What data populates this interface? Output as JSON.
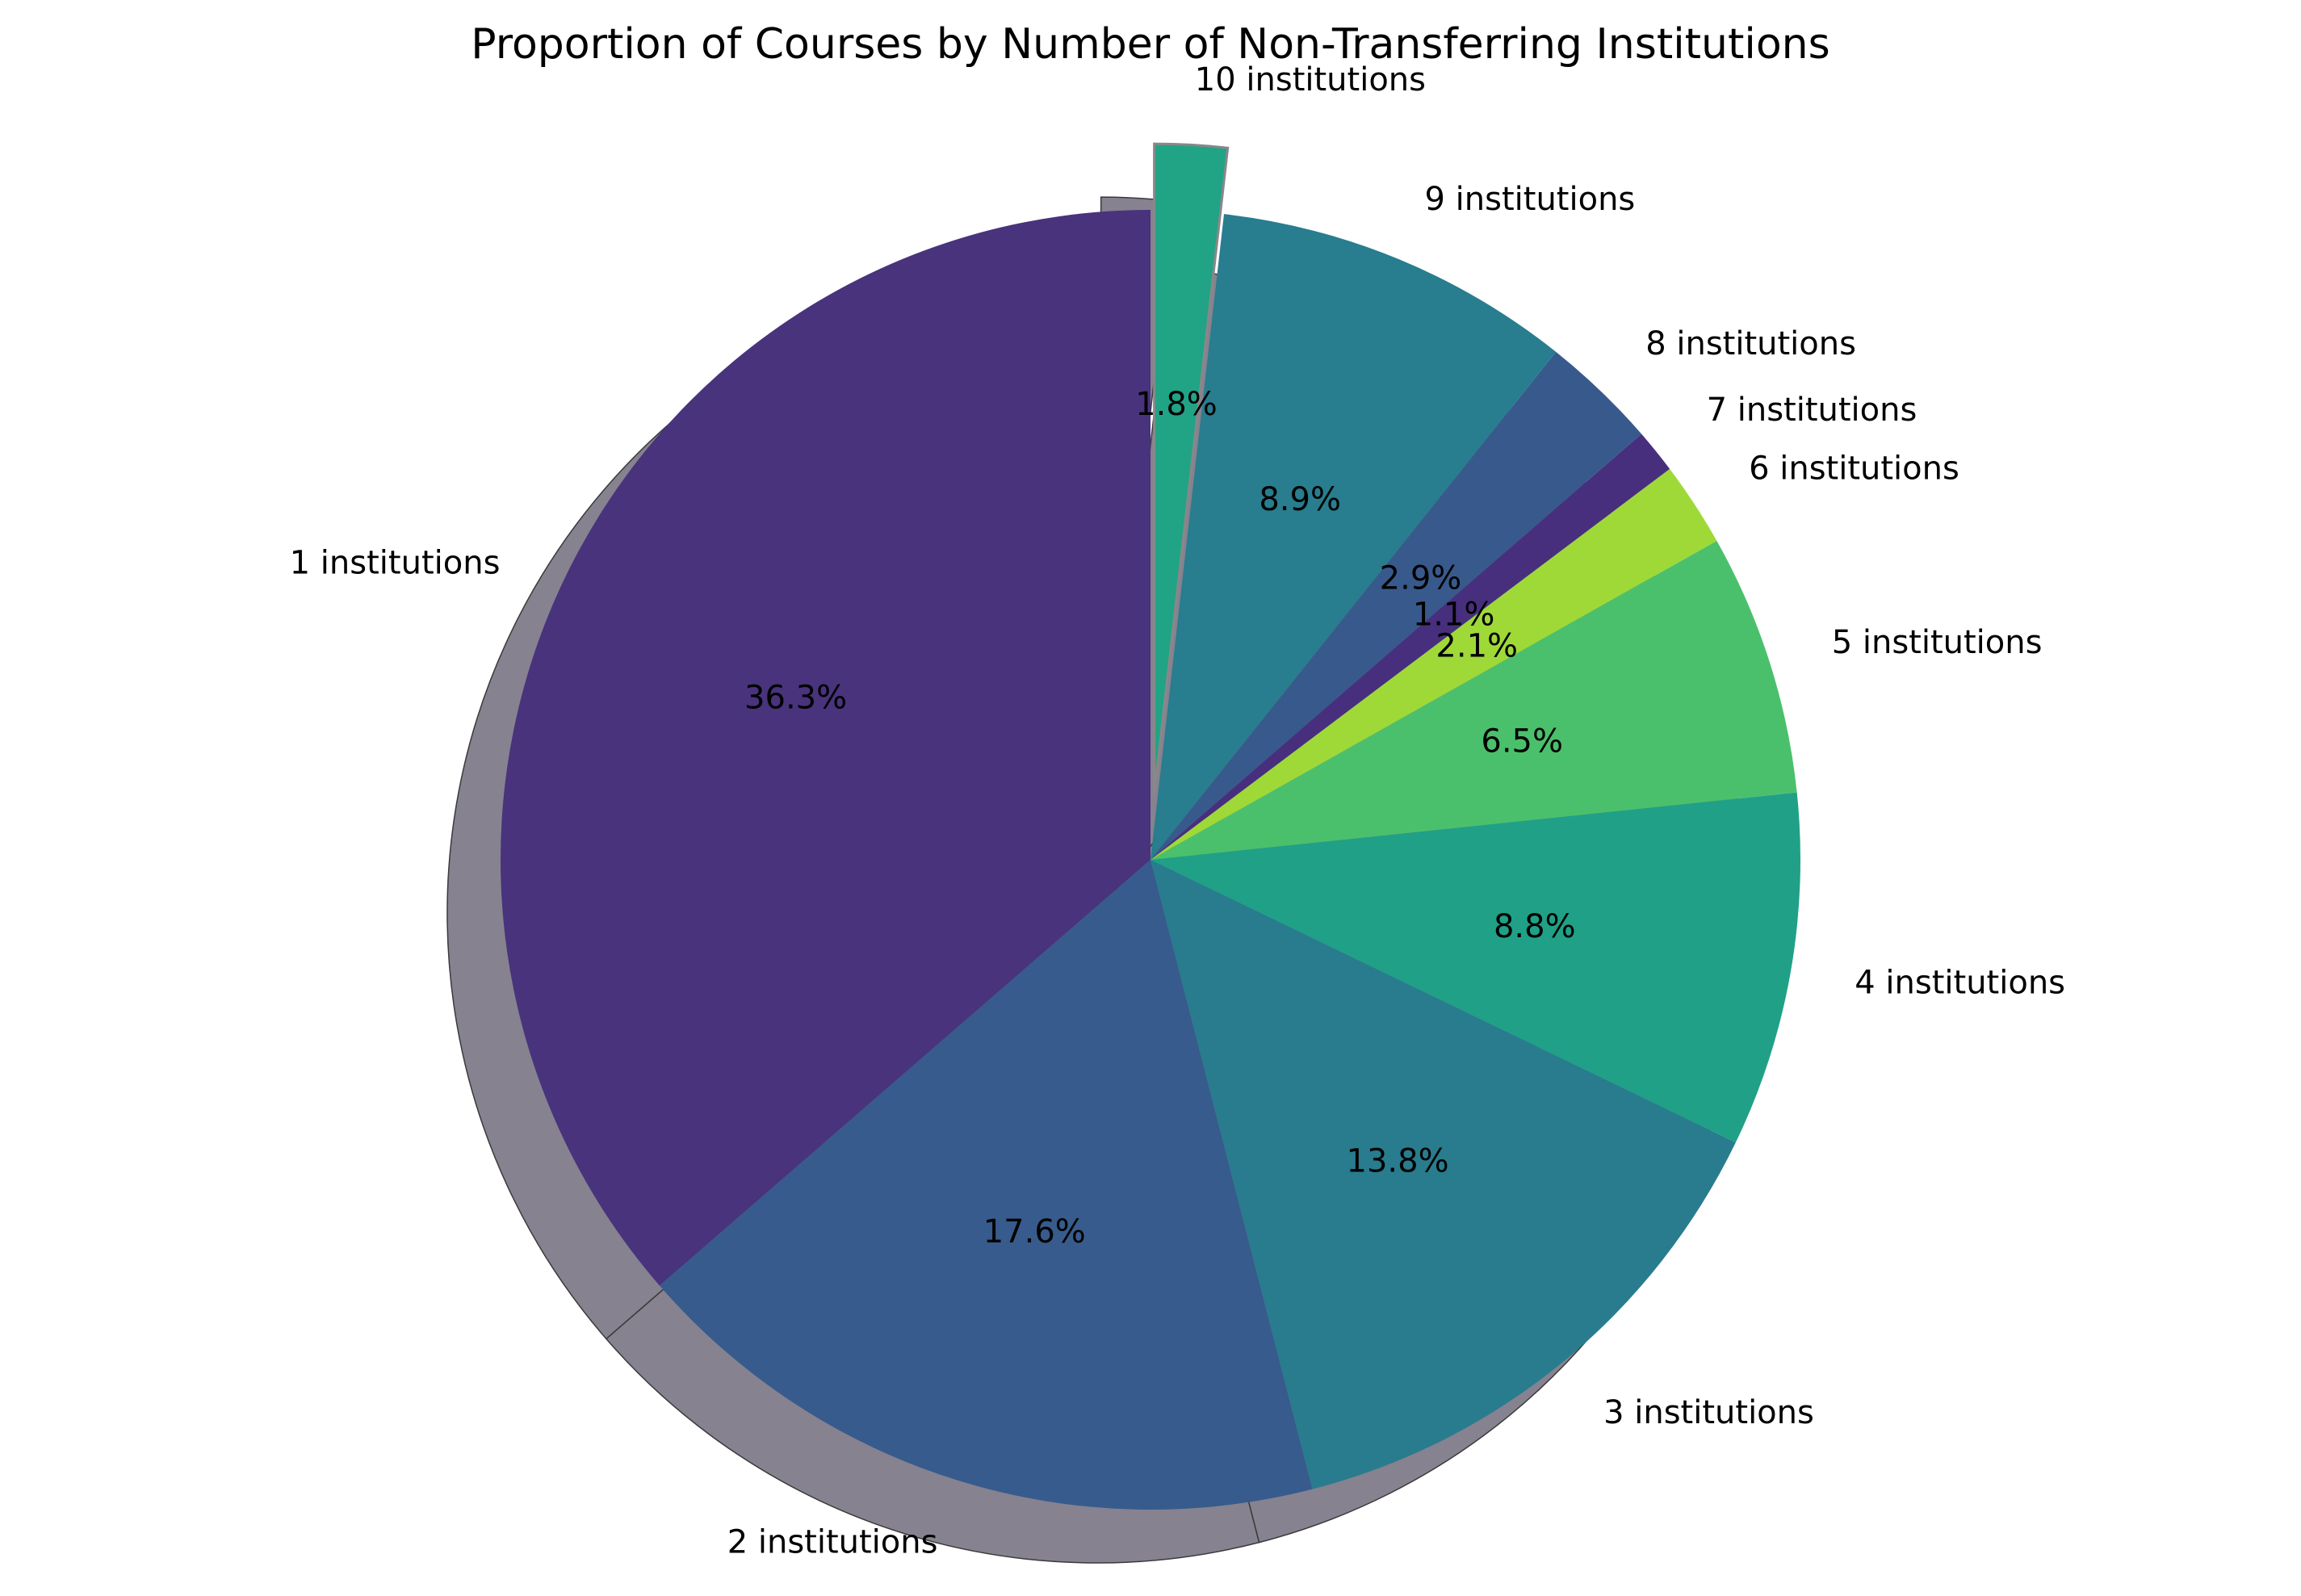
{
  "chart_data": {
    "type": "pie",
    "title": "Proportion of Courses by Number of Non-Transferring Institutions",
    "categories": [
      "1 institutions",
      "2 institutions",
      "3 institutions",
      "4 institutions",
      "5 institutions",
      "6 institutions",
      "7 institutions",
      "8 institutions",
      "9 institutions",
      "10 institutions"
    ],
    "values": [
      36.3,
      17.6,
      13.8,
      8.8,
      6.5,
      2.1,
      1.1,
      2.9,
      8.9,
      1.8
    ],
    "value_labels": [
      "36.3%",
      "17.6%",
      "13.8%",
      "8.8%",
      "6.5%",
      "2.1%",
      "1.1%",
      "2.9%",
      "8.9%",
      "1.8%"
    ],
    "colors": [
      "#48337c",
      "#375b8c",
      "#287c8e",
      "#20a087",
      "#4bc06c",
      "#9fd938",
      "#472f7e",
      "#38598c",
      "#287d8e",
      "#21a386"
    ],
    "exploded": [
      "10 institutions"
    ],
    "shadow": true,
    "start_angle": "top",
    "direction": "counterclockwise",
    "legend": "none"
  }
}
